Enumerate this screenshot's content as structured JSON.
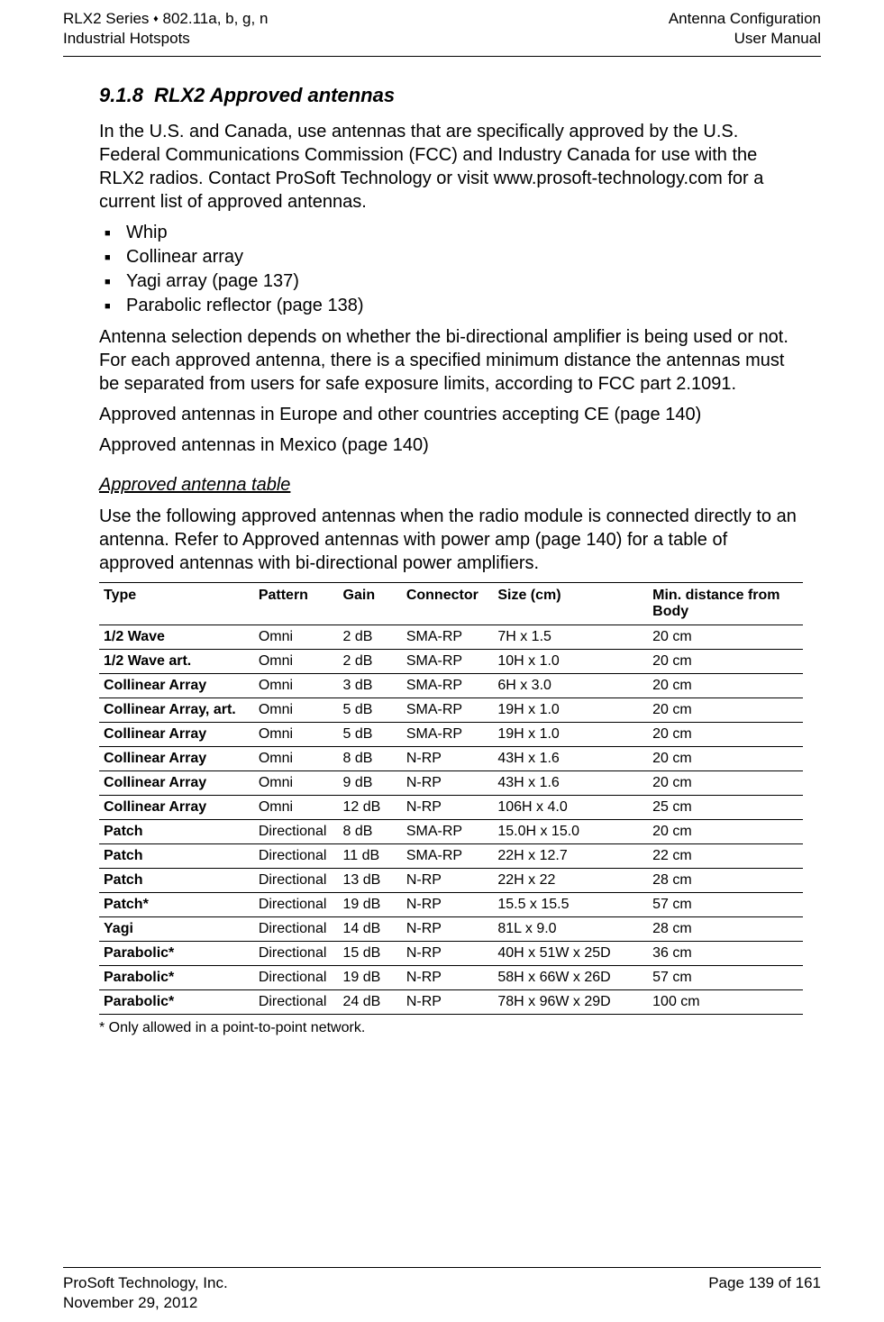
{
  "header": {
    "left_line1_a": "RLX2 Series ",
    "left_line1_diamond": "♦",
    "left_line1_b": " 802.11a, b, g, n",
    "left_line2": "Industrial Hotspots",
    "right_line1": "Antenna Configuration",
    "right_line2": "User Manual"
  },
  "section": {
    "number": "9.1.8",
    "title": "RLX2 Approved antennas",
    "para1": "In the U.S. and Canada, use antennas that are specifically approved by the U.S. Federal Communications Commission (FCC) and Industry Canada for use with the RLX2 radios. Contact ProSoft Technology or visit www.prosoft-technology.com for a current list of approved antennas.",
    "bullets": [
      "Whip",
      "Collinear array",
      "Yagi array (page 137)",
      "Parabolic reflector (page 138)"
    ],
    "para2": "Antenna selection depends on whether the bi-directional amplifier is being used or not. For each approved antenna, there is a specified minimum distance the antennas must be separated from users for safe exposure limits, according to FCC part 2.1091.",
    "para3": "Approved antennas in Europe and other countries accepting CE (page 140)",
    "para4": "Approved antennas in Mexico (page 140)",
    "subheading": "Approved antenna table",
    "para5": "Use the following approved antennas when the radio module is connected directly to an antenna. Refer to Approved antennas with power amp (page 140) for a table of approved antennas with bi-directional power amplifiers.",
    "footnote": "* Only allowed in a point-to-point network."
  },
  "table": {
    "columns": [
      "Type",
      "Pattern",
      "Gain",
      "Connector",
      "Size (cm)",
      "Min. distance from Body"
    ],
    "col_widths": [
      "22%",
      "12%",
      "9%",
      "13%",
      "22%",
      "22%"
    ],
    "rows": [
      [
        "1/2 Wave",
        "Omni",
        "2 dB",
        "SMA-RP",
        "7H x 1.5",
        "20 cm"
      ],
      [
        "1/2 Wave art.",
        "Omni",
        "2 dB",
        "SMA-RP",
        "10H x 1.0",
        "20 cm"
      ],
      [
        "Collinear Array",
        "Omni",
        "3 dB",
        "SMA-RP",
        "6H x 3.0",
        "20 cm"
      ],
      [
        "Collinear Array, art.",
        "Omni",
        "5 dB",
        "SMA-RP",
        "19H x 1.0",
        "20 cm"
      ],
      [
        "Collinear Array",
        "Omni",
        "5 dB",
        "SMA-RP",
        "19H x 1.0",
        "20 cm"
      ],
      [
        "Collinear Array",
        "Omni",
        "8 dB",
        "N-RP",
        "43H x 1.6",
        "20 cm"
      ],
      [
        "Collinear Array",
        "Omni",
        "9 dB",
        "N-RP",
        "43H x 1.6",
        "20 cm"
      ],
      [
        "Collinear Array",
        "Omni",
        "12 dB",
        "N-RP",
        "106H x 4.0",
        "25 cm"
      ],
      [
        "Patch",
        "Directional",
        "8 dB",
        "SMA-RP",
        "15.0H x 15.0",
        "20 cm"
      ],
      [
        "Patch",
        "Directional",
        "11 dB",
        "SMA-RP",
        "22H x 12.7",
        "22 cm"
      ],
      [
        "Patch",
        "Directional",
        "13 dB",
        "N-RP",
        "22H x 22",
        "28 cm"
      ],
      [
        "Patch*",
        "Directional",
        "19 dB",
        "N-RP",
        "15.5 x 15.5",
        "57 cm"
      ],
      [
        "Yagi",
        "Directional",
        "14 dB",
        "N-RP",
        "81L x 9.0",
        "28 cm"
      ],
      [
        "Parabolic*",
        "Directional",
        "15 dB",
        "N-RP",
        "40H x 51W x 25D",
        "36 cm"
      ],
      [
        "Parabolic*",
        "Directional",
        "19 dB",
        "N-RP",
        "58H x 66W x 26D",
        "57 cm"
      ],
      [
        "Parabolic*",
        "Directional",
        "24 dB",
        "N-RP",
        "78H x 96W x 29D",
        "100 cm"
      ]
    ]
  },
  "footer": {
    "left_line1": "ProSoft Technology, Inc.",
    "left_line2": "November 29, 2012",
    "right_line1": "Page 139 of 161"
  }
}
